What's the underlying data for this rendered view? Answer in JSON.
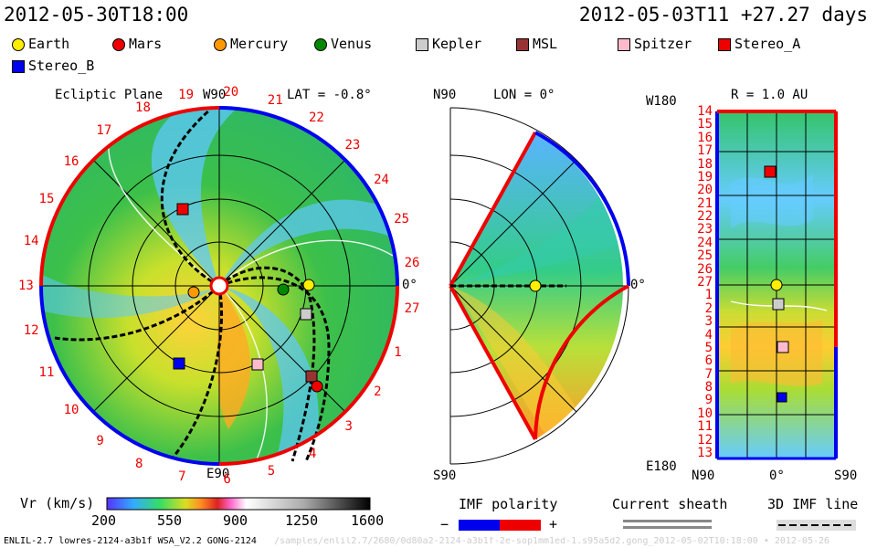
{
  "header": {
    "timestamp": "2012-05-30T18:00",
    "run_info": "2012-05-03T11 +27.27 days"
  },
  "legend": [
    {
      "label": "Earth",
      "color": "#ffee00",
      "shape": "circle"
    },
    {
      "label": "Mars",
      "color": "#ee0000",
      "shape": "circle"
    },
    {
      "label": "Mercury",
      "color": "#ff9900",
      "shape": "circle"
    },
    {
      "label": "Venus",
      "color": "#008800",
      "shape": "circle"
    },
    {
      "label": "Kepler",
      "color": "#cccccc",
      "shape": "square"
    },
    {
      "label": "MSL",
      "color": "#993333",
      "shape": "square"
    },
    {
      "label": "Spitzer",
      "color": "#ffbbcc",
      "shape": "square"
    },
    {
      "label": "Stereo_A",
      "color": "#ee0000",
      "shape": "square"
    },
    {
      "label": "Stereo_B",
      "color": "#0000ee",
      "shape": "square"
    }
  ],
  "panels": {
    "ecliptic": {
      "title": "Ecliptic Plane",
      "top_label": "W90",
      "lat_label": "LAT = -0.8°",
      "right_label": "0°",
      "bottom_label": "E90",
      "rotation_numbers": [
        "19",
        "20",
        "21",
        "22",
        "23",
        "24",
        "25",
        "26",
        "27",
        "1",
        "2",
        "3",
        "4",
        "5",
        "6",
        "7",
        "8",
        "9",
        "10",
        "11",
        "12",
        "13",
        "14",
        "15",
        "16",
        "17",
        "18"
      ]
    },
    "meridional": {
      "top_label": "N90",
      "lon_label": "LON = 0°",
      "right_label": "0°",
      "bottom_label": "S90"
    },
    "latlon": {
      "top_left_label": "W180",
      "radius_label": "R = 1.0 AU",
      "bottom_left_label": "E180",
      "x_ticks": [
        "N90",
        "0°",
        "S90"
      ],
      "y_ticks": [
        "14",
        "15",
        "16",
        "17",
        "18",
        "19",
        "20",
        "21",
        "22",
        "23",
        "24",
        "25",
        "26",
        "27",
        "1",
        "2",
        "3",
        "4",
        "5",
        "6",
        "7",
        "8",
        "9",
        "10",
        "11",
        "12",
        "13"
      ]
    }
  },
  "colorbar": {
    "title": "Vr (km/s)",
    "ticks": [
      "200",
      "550",
      "900",
      "1250",
      "1600"
    ]
  },
  "imf_polarity": {
    "title": "IMF polarity",
    "minus": "−",
    "plus": "+"
  },
  "current_sheath": {
    "title": "Current sheath"
  },
  "imf_3d": {
    "title": "3D IMF line"
  },
  "footer": {
    "model": "ENLIL-2.7 lowres-2124-a3b1f WSA_V2.2 GONG-2124",
    "path": "/samples/enlil2.7/2680/0d80a2-2124-a3b1f-2e-sop1mm1ed-1.s95a5d2.gong_2012-05-02T10:18:00 • 2012-05-26"
  },
  "colors": {
    "polarity_negative": "#0000ee",
    "polarity_positive": "#ee0000",
    "grid": "#000000"
  }
}
